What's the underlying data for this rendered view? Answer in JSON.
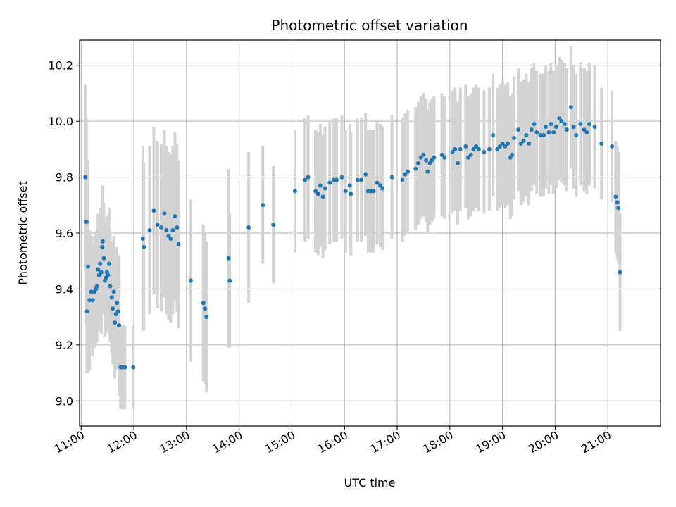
{
  "chart_data": {
    "type": "scatter",
    "title": "Photometric offset variation",
    "xlabel": "UTC time",
    "ylabel": "Photometric offset",
    "x_unit": "hours UTC",
    "xlim": [
      10.97,
      22.0
    ],
    "ylim": [
      8.91,
      10.29
    ],
    "x_ticks": [
      11,
      12,
      13,
      14,
      15,
      16,
      17,
      18,
      19,
      20,
      21
    ],
    "x_tick_labels": [
      "11:00",
      "12:00",
      "13:00",
      "14:00",
      "15:00",
      "16:00",
      "17:00",
      "18:00",
      "19:00",
      "20:00",
      "21:00"
    ],
    "y_ticks": [
      9.0,
      9.2,
      9.4,
      9.6,
      9.8,
      10.0,
      10.2
    ],
    "y_tick_labels": [
      "9.0",
      "9.2",
      "9.4",
      "9.6",
      "9.8",
      "10.0",
      "10.2"
    ],
    "grid": true,
    "colors": {
      "point": "#1f77b4",
      "errorbar": "#d3d3d3",
      "grid": "#b0b0b0"
    },
    "series": [
      {
        "points": [
          [
            11.08,
            9.8,
            0.33
          ],
          [
            11.1,
            9.64,
            0.37
          ],
          [
            11.11,
            9.32,
            0.22
          ],
          [
            11.13,
            9.48,
            0.38
          ],
          [
            11.16,
            9.36,
            0.25
          ],
          [
            11.19,
            9.39,
            0.2
          ],
          [
            11.22,
            9.36,
            0.2
          ],
          [
            11.25,
            9.39,
            0.2
          ],
          [
            11.28,
            9.4,
            0.2
          ],
          [
            11.3,
            9.41,
            0.2
          ],
          [
            11.32,
            9.47,
            0.2
          ],
          [
            11.34,
            9.45,
            0.2
          ],
          [
            11.36,
            9.49,
            0.2
          ],
          [
            11.38,
            9.46,
            0.22
          ],
          [
            11.4,
            9.55,
            0.2
          ],
          [
            11.41,
            9.57,
            0.2
          ],
          [
            11.43,
            9.51,
            0.2
          ],
          [
            11.45,
            9.43,
            0.2
          ],
          [
            11.47,
            9.44,
            0.2
          ],
          [
            11.49,
            9.46,
            0.2
          ],
          [
            11.51,
            9.45,
            0.2
          ],
          [
            11.53,
            9.49,
            0.2
          ],
          [
            11.55,
            9.41,
            0.2
          ],
          [
            11.58,
            9.37,
            0.2
          ],
          [
            11.6,
            9.33,
            0.2
          ],
          [
            11.62,
            9.39,
            0.2
          ],
          [
            11.64,
            9.28,
            0.2
          ],
          [
            11.66,
            9.31,
            0.2
          ],
          [
            11.68,
            9.35,
            0.2
          ],
          [
            11.7,
            9.32,
            0.2
          ],
          [
            11.72,
            9.27,
            0.25
          ],
          [
            11.75,
            9.12,
            0.15
          ],
          [
            11.78,
            9.12,
            0.15
          ],
          [
            11.83,
            9.12,
            0.15
          ],
          [
            11.99,
            9.12,
            0.15
          ],
          [
            12.17,
            9.58,
            0.33
          ],
          [
            12.19,
            9.55,
            0.3
          ],
          [
            12.3,
            9.61,
            0.3
          ],
          [
            12.38,
            9.68,
            0.3
          ],
          [
            12.45,
            9.63,
            0.3
          ],
          [
            12.52,
            9.62,
            0.3
          ],
          [
            12.58,
            9.67,
            0.3
          ],
          [
            12.62,
            9.61,
            0.3
          ],
          [
            12.66,
            9.59,
            0.3
          ],
          [
            12.7,
            9.58,
            0.3
          ],
          [
            12.74,
            9.61,
            0.3
          ],
          [
            12.78,
            9.66,
            0.3
          ],
          [
            12.82,
            9.62,
            0.3
          ],
          [
            12.85,
            9.56,
            0.3
          ],
          [
            13.08,
            9.43,
            0.29
          ],
          [
            13.32,
            9.35,
            0.28
          ],
          [
            13.35,
            9.33,
            0.27
          ],
          [
            13.38,
            9.3,
            0.27
          ],
          [
            13.8,
            9.51,
            0.32
          ],
          [
            13.82,
            9.43,
            0.24
          ],
          [
            14.18,
            9.62,
            0.27
          ],
          [
            14.45,
            9.7,
            0.21
          ],
          [
            14.65,
            9.63,
            0.21
          ],
          [
            15.06,
            9.75,
            0.22
          ],
          [
            15.25,
            9.79,
            0.22
          ],
          [
            15.31,
            9.8,
            0.22
          ],
          [
            15.45,
            9.75,
            0.22
          ],
          [
            15.5,
            9.74,
            0.22
          ],
          [
            15.54,
            9.77,
            0.22
          ],
          [
            15.59,
            9.73,
            0.22
          ],
          [
            15.63,
            9.76,
            0.22
          ],
          [
            15.72,
            9.78,
            0.22
          ],
          [
            15.8,
            9.79,
            0.22
          ],
          [
            15.85,
            9.79,
            0.22
          ],
          [
            15.95,
            9.8,
            0.22
          ],
          [
            16.02,
            9.75,
            0.22
          ],
          [
            16.1,
            9.77,
            0.22
          ],
          [
            16.12,
            9.74,
            0.22
          ],
          [
            16.25,
            9.79,
            0.22
          ],
          [
            16.32,
            9.79,
            0.22
          ],
          [
            16.4,
            9.81,
            0.22
          ],
          [
            16.45,
            9.75,
            0.22
          ],
          [
            16.5,
            9.75,
            0.22
          ],
          [
            16.55,
            9.75,
            0.22
          ],
          [
            16.62,
            9.78,
            0.22
          ],
          [
            16.68,
            9.77,
            0.22
          ],
          [
            16.72,
            9.76,
            0.22
          ],
          [
            16.9,
            9.8,
            0.22
          ],
          [
            17.1,
            9.79,
            0.22
          ],
          [
            17.15,
            9.81,
            0.22
          ],
          [
            17.2,
            9.82,
            0.22
          ],
          [
            17.35,
            9.83,
            0.22
          ],
          [
            17.4,
            9.85,
            0.22
          ],
          [
            17.45,
            9.87,
            0.22
          ],
          [
            17.5,
            9.88,
            0.22
          ],
          [
            17.55,
            9.86,
            0.22
          ],
          [
            17.58,
            9.82,
            0.22
          ],
          [
            17.62,
            9.85,
            0.22
          ],
          [
            17.66,
            9.86,
            0.22
          ],
          [
            17.7,
            9.87,
            0.22
          ],
          [
            17.85,
            9.88,
            0.22
          ],
          [
            17.9,
            9.87,
            0.22
          ],
          [
            18.05,
            9.89,
            0.22
          ],
          [
            18.1,
            9.9,
            0.22
          ],
          [
            18.15,
            9.85,
            0.22
          ],
          [
            18.2,
            9.9,
            0.22
          ],
          [
            18.3,
            9.91,
            0.22
          ],
          [
            18.35,
            9.87,
            0.22
          ],
          [
            18.4,
            9.88,
            0.22
          ],
          [
            18.45,
            9.9,
            0.22
          ],
          [
            18.5,
            9.91,
            0.22
          ],
          [
            18.55,
            9.9,
            0.22
          ],
          [
            18.65,
            9.89,
            0.22
          ],
          [
            18.75,
            9.9,
            0.22
          ],
          [
            18.82,
            9.95,
            0.22
          ],
          [
            18.9,
            9.9,
            0.22
          ],
          [
            18.95,
            9.91,
            0.22
          ],
          [
            19.0,
            9.92,
            0.22
          ],
          [
            19.05,
            9.91,
            0.22
          ],
          [
            19.1,
            9.92,
            0.22
          ],
          [
            19.15,
            9.87,
            0.22
          ],
          [
            19.18,
            9.88,
            0.22
          ],
          [
            19.22,
            9.94,
            0.22
          ],
          [
            19.3,
            9.97,
            0.22
          ],
          [
            19.35,
            9.92,
            0.22
          ],
          [
            19.4,
            9.93,
            0.22
          ],
          [
            19.45,
            9.95,
            0.22
          ],
          [
            19.5,
            9.92,
            0.22
          ],
          [
            19.55,
            9.97,
            0.22
          ],
          [
            19.6,
            9.99,
            0.22
          ],
          [
            19.65,
            9.96,
            0.22
          ],
          [
            19.72,
            9.95,
            0.22
          ],
          [
            19.78,
            9.95,
            0.22
          ],
          [
            19.82,
            9.98,
            0.22
          ],
          [
            19.88,
            9.96,
            0.22
          ],
          [
            19.92,
            9.99,
            0.22
          ],
          [
            19.97,
            9.96,
            0.22
          ],
          [
            20.02,
            9.98,
            0.22
          ],
          [
            20.08,
            10.01,
            0.22
          ],
          [
            20.12,
            10.0,
            0.22
          ],
          [
            20.18,
            9.99,
            0.22
          ],
          [
            20.22,
            9.97,
            0.22
          ],
          [
            20.3,
            10.05,
            0.22
          ],
          [
            20.35,
            9.98,
            0.22
          ],
          [
            20.4,
            9.95,
            0.22
          ],
          [
            20.48,
            9.99,
            0.22
          ],
          [
            20.55,
            9.97,
            0.22
          ],
          [
            20.6,
            9.96,
            0.22
          ],
          [
            20.65,
            9.99,
            0.22
          ],
          [
            20.75,
            9.98,
            0.22
          ],
          [
            20.88,
            9.92,
            0.2
          ],
          [
            21.08,
            9.91,
            0.2
          ],
          [
            21.15,
            9.73,
            0.2
          ],
          [
            21.18,
            9.71,
            0.2
          ],
          [
            21.2,
            9.69,
            0.2
          ],
          [
            21.23,
            9.46,
            0.21
          ]
        ]
      }
    ]
  }
}
